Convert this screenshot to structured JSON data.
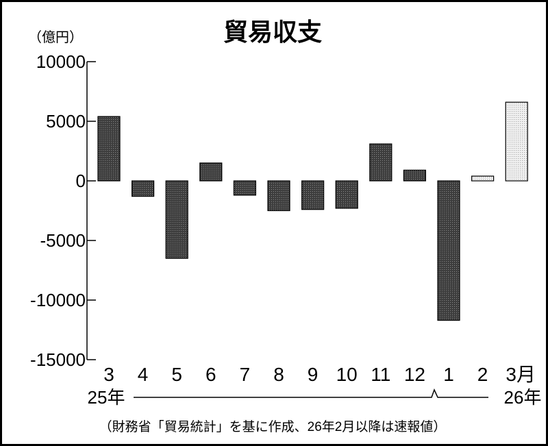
{
  "chart_data": {
    "type": "bar",
    "title": "貿易収支",
    "ylabel": "（億円）",
    "ylim": [
      -15000,
      10000
    ],
    "yticks": [
      "10000",
      "5000",
      "0",
      "-5000",
      "-10000",
      "-15000"
    ],
    "ytick_values": [
      10000,
      5000,
      0,
      -5000,
      -10000,
      -15000
    ],
    "categories": [
      "3",
      "4",
      "5",
      "6",
      "7",
      "8",
      "9",
      "10",
      "11",
      "12",
      "1",
      "2",
      "3月"
    ],
    "values": [
      5400,
      -1300,
      -6500,
      1500,
      -1200,
      -2500,
      -2400,
      -2300,
      3100,
      900,
      -11700,
      400,
      6600
    ],
    "preliminary_from_index": 11,
    "year_labels": {
      "start": "25年",
      "end": "26年"
    },
    "bar_color": "#4d4d4d",
    "preliminary_color": "#e6e6e6",
    "note": "（財務省「貿易統計」を基に作成、26年2月以降は速報値）"
  }
}
